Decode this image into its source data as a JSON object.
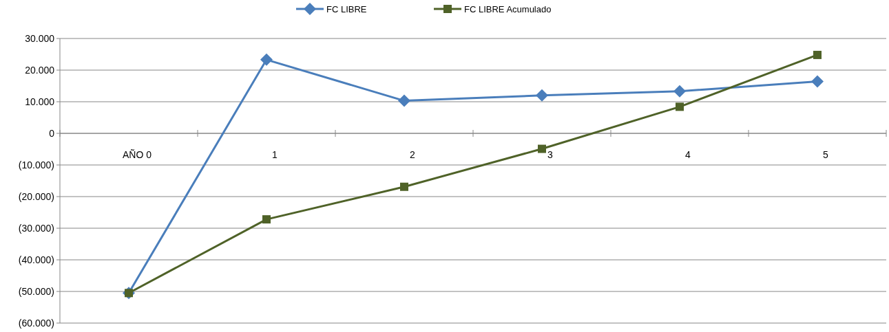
{
  "chart_data": {
    "type": "line",
    "categories": [
      "AÑO 0",
      "1",
      "2",
      "3",
      "4",
      "5"
    ],
    "series": [
      {
        "name": "FC LIBRE",
        "color": "#4a7ebb",
        "marker": "diamond",
        "values": [
          -50500,
          23300,
          10300,
          12000,
          13300,
          16400
        ]
      },
      {
        "name": "FC LIBRE Acumulado",
        "color": "#4f6228",
        "marker": "square",
        "values": [
          -50500,
          -27200,
          -16900,
          -4900,
          8400,
          24800
        ]
      }
    ],
    "ylim": [
      -60000,
      30000
    ],
    "yticks": [
      {
        "value": -60000,
        "label": "(60.000)"
      },
      {
        "value": -50000,
        "label": "(50.000)"
      },
      {
        "value": -40000,
        "label": "(40.000)"
      },
      {
        "value": -30000,
        "label": "(30.000)"
      },
      {
        "value": -20000,
        "label": "(20.000)"
      },
      {
        "value": -10000,
        "label": "(10.000)"
      },
      0,
      {
        "value": 10000,
        "label": "10.000"
      },
      {
        "value": 20000,
        "label": "20.000"
      },
      {
        "value": 30000,
        "label": "30.000"
      }
    ],
    "grid": "y",
    "legend": "top"
  }
}
